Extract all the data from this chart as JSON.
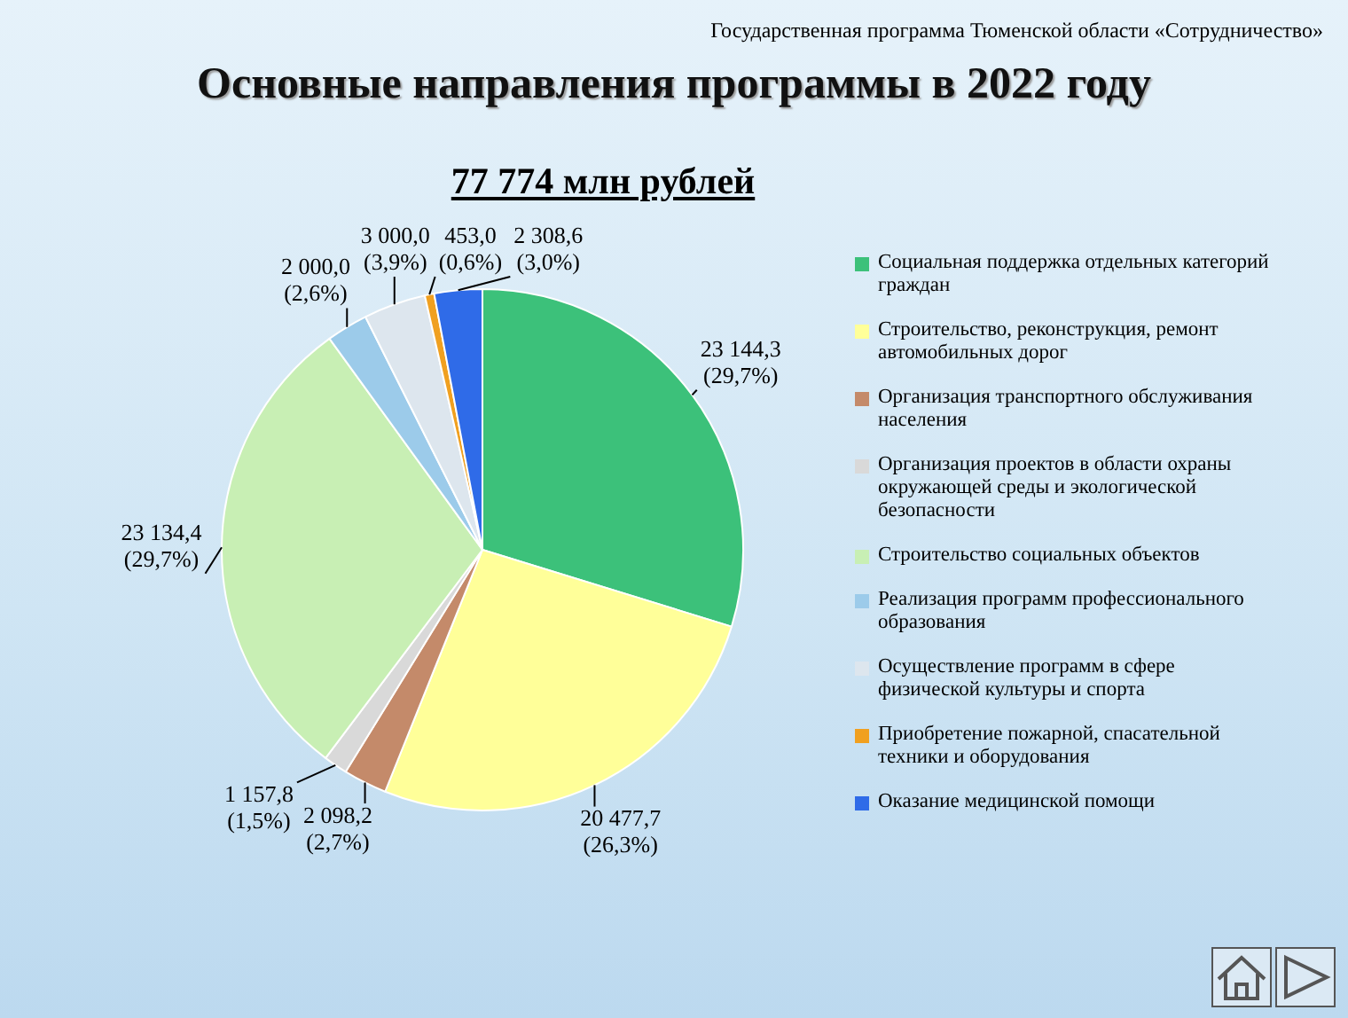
{
  "chart_data": {
    "type": "pie",
    "title": "Основные направления программы в 2022 году",
    "subtitle": "77 774 млн рублей",
    "annotations": [
      "Государственная программа  Тюменской области «Сотрудничество»"
    ],
    "categories": [
      "Социальная поддержка отдельных категорий граждан",
      "Строительство, реконструкция, ремонт автомобильных дорог",
      "Организация транспортного обслуживания населения",
      "Организация проектов в области охраны окружающей среды и экологической безопасности",
      "Строительство социальных объектов",
      "Реализация программ профессионального образования",
      "Осуществление программ в сфере физической культуры и спорта",
      "Приобретение пожарной, спасательной техники и  оборудования",
      "Оказание медицинской помощи"
    ],
    "values": [
      23144.3,
      20477.7,
      2098.2,
      1157.8,
      23134.4,
      2000.0,
      3000.0,
      453.0,
      2308.6
    ],
    "value_labels": [
      "23 144,3 (29,7%)",
      "20 477,7 (26,3%)",
      "2 098,2 (2,7%)",
      "1 157,8 (1,5%)",
      "23 134,4 (29,7%)",
      "2 000,0 (2,6%)",
      "3 000,0 (3,9%)",
      "453,0 (0,6%)",
      "2 308,6 (3,0%)"
    ],
    "colors": [
      "#3cc17a",
      "#ffff99",
      "#c48a6a",
      "#d9d9d9",
      "#c8efb4",
      "#9ccbea",
      "#dde6ee",
      "#f0a020",
      "#2f6be8"
    ],
    "legend": "right"
  }
}
